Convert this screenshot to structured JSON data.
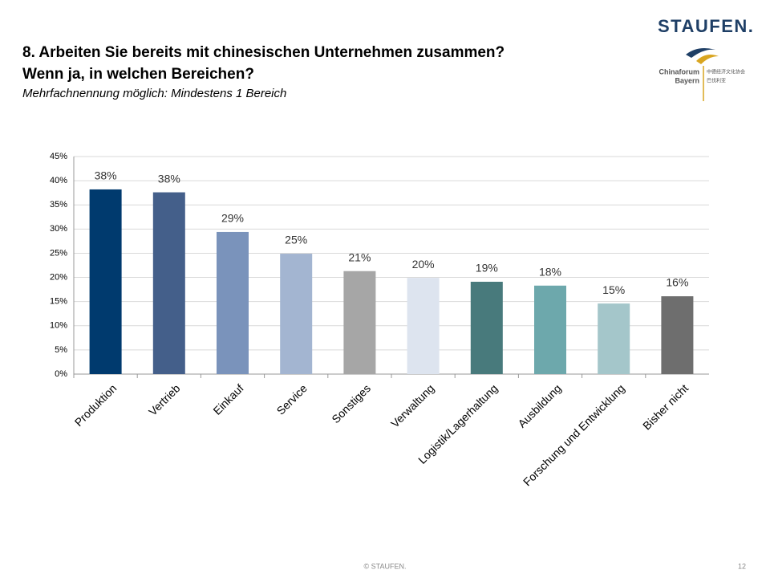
{
  "chart_data": {
    "type": "bar",
    "title_lines": [
      "8. Arbeiten Sie bereits mit chinesischen Unternehmen zusammen?",
      "Wenn ja, in welchen Bereichen?"
    ],
    "subtitle": "Mehrfachnennung möglich: Mindestens 1 Bereich",
    "categories": [
      "Produktion",
      "Vertrieb",
      "Einkauf",
      "Service",
      "Sonstiges",
      "Verwaltung",
      "Logistik/Lagerhaltung",
      "Ausbildung",
      "Forschung und Entwicklung",
      "Bisher nicht"
    ],
    "values": [
      38.2,
      37.6,
      29.4,
      24.9,
      21.3,
      19.9,
      19.1,
      18.3,
      14.6,
      16.1
    ],
    "value_labels": [
      "38%",
      "38%",
      "29%",
      "25%",
      "21%",
      "20%",
      "19%",
      "18%",
      "15%",
      "16%"
    ],
    "colors": [
      "#003a6e",
      "#445f8a",
      "#7a93bb",
      "#a3b5d1",
      "#a6a6a6",
      "#dde4ef",
      "#487a7c",
      "#6da8ac",
      "#a4c6ca",
      "#6e6e6e"
    ],
    "ylim": [
      0,
      45
    ],
    "yticks": [
      {
        "value": 0,
        "label": "0%"
      },
      {
        "value": 5,
        "label": "5%"
      },
      {
        "value": 10,
        "label": "10%"
      },
      {
        "value": 15,
        "label": "15%"
      },
      {
        "value": 20,
        "label": "20%"
      },
      {
        "value": 25,
        "label": "25%"
      },
      {
        "value": 30,
        "label": "30%"
      },
      {
        "value": 35,
        "label": "35%"
      },
      {
        "value": 40,
        "label": "40%"
      },
      {
        "value": 45,
        "label": "45%"
      }
    ],
    "grid": true
  },
  "slide": {
    "logo": "STAUFEN.",
    "partner_line1": "Chinaforum",
    "partner_line2": "Bayern",
    "partner_cn1": "中德经济文化协会",
    "partner_cn2": "巴伐利亚",
    "footer": "© STAUFEN.",
    "page": "12"
  }
}
